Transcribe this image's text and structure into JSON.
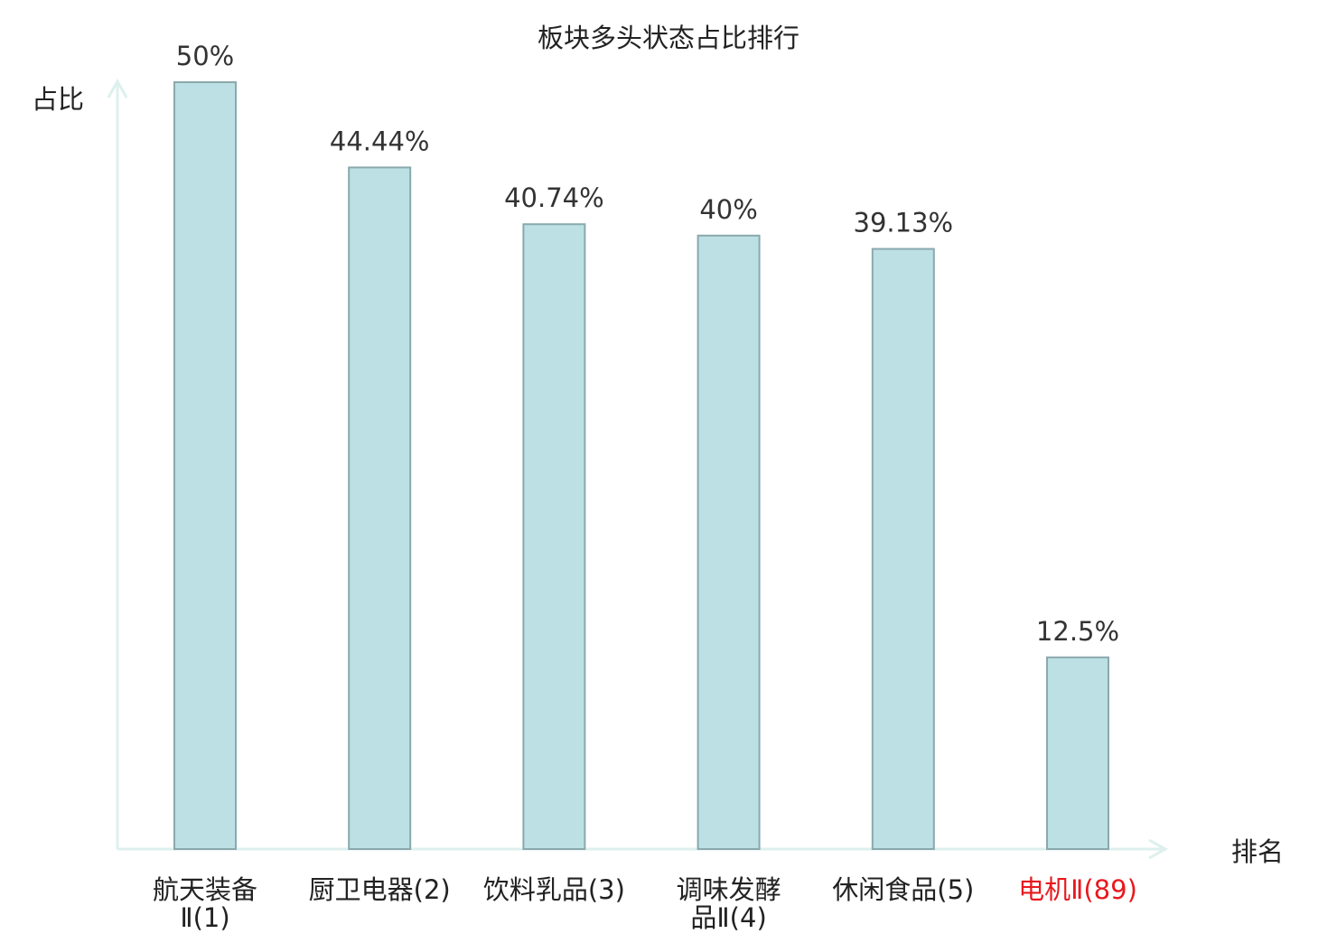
{
  "chart_data": {
    "type": "bar",
    "title": "板块多头状态占比排行",
    "ylabel": "占比",
    "xlabel": "排名",
    "categories": [
      [
        "航天装备",
        "Ⅱ(1)"
      ],
      [
        "厨卫电器(2)"
      ],
      [
        "饮料乳品(3)"
      ],
      [
        "调味发酵",
        "品Ⅱ(4)"
      ],
      [
        "休闲食品(5)"
      ],
      [
        "电机Ⅱ(89)"
      ]
    ],
    "values": [
      50,
      44.44,
      40.74,
      40,
      39.13,
      12.5
    ],
    "value_labels": [
      "50%",
      "44.44%",
      "40.74%",
      "40%",
      "39.13%",
      "12.5%"
    ],
    "highlight_index": 5,
    "ylim": [
      0,
      50
    ],
    "grid": false,
    "colors": {
      "bar_fill": "#bce0e3",
      "bar_stroke": "#8aa9ad",
      "axis": "#ddf0ee",
      "text": "#333333",
      "highlight": "#e8191e"
    }
  }
}
